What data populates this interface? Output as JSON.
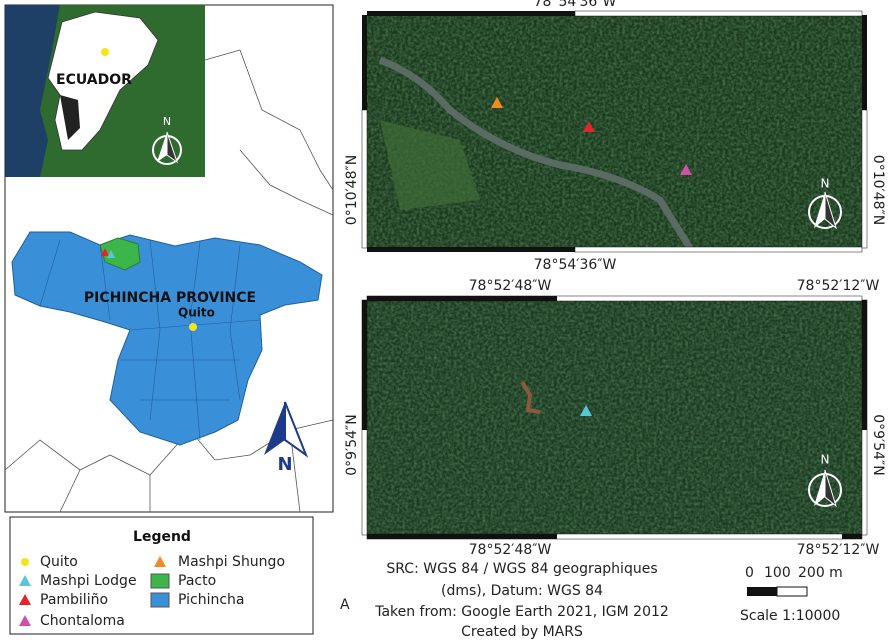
{
  "inset": {
    "country_label": "ECUADOR",
    "north": "N"
  },
  "province_map": {
    "label": "PICHINCHA PROVINCE",
    "city": "Quito",
    "north": "N"
  },
  "satellite_top": {
    "top_lon": "78°54′36″W",
    "bottom_lon": "78°54′36″W",
    "left_lat": "0°10′48″N",
    "right_lat": "0°10′48″N",
    "north": "N"
  },
  "satellite_bottom": {
    "top_lons": [
      "78°52′48″W",
      "78°52′12″W"
    ],
    "bottom_lons": [
      "78°52′48″W",
      "78°52′12″W"
    ],
    "left_lat": "0°9′54″N",
    "right_lat": "0°9′54″N",
    "north": "N"
  },
  "legend": {
    "title": "Legend",
    "items": [
      {
        "label": "Quito",
        "symbol": "circle",
        "color": "#f2e51c"
      },
      {
        "label": "Mashpi Lodge",
        "symbol": "triangle",
        "color": "#5bc7d6"
      },
      {
        "label": "Pambiliño",
        "symbol": "triangle",
        "color": "#e3242b"
      },
      {
        "label": "Chontaloma",
        "symbol": "triangle",
        "color": "#d24fa8"
      },
      {
        "label": "Mashpi Shungo",
        "symbol": "triangle",
        "color": "#f08a24"
      },
      {
        "label": "Pacto",
        "symbol": "square",
        "color": "#3cb54a"
      },
      {
        "label": "Pichincha",
        "symbol": "square",
        "color": "#3a8fd9"
      }
    ]
  },
  "caption": {
    "lines": [
      "SRC: WGS 84 /  WGS 84 geographiques",
      "(dms), Datum: WGS 84",
      "Taken from:  Google Earth 2021, IGM 2012",
      "Created by MARS"
    ],
    "panel_label": "A"
  },
  "scale": {
    "labels": [
      "0",
      "100",
      "200 m"
    ],
    "ratio": "Scale 1:10000"
  }
}
